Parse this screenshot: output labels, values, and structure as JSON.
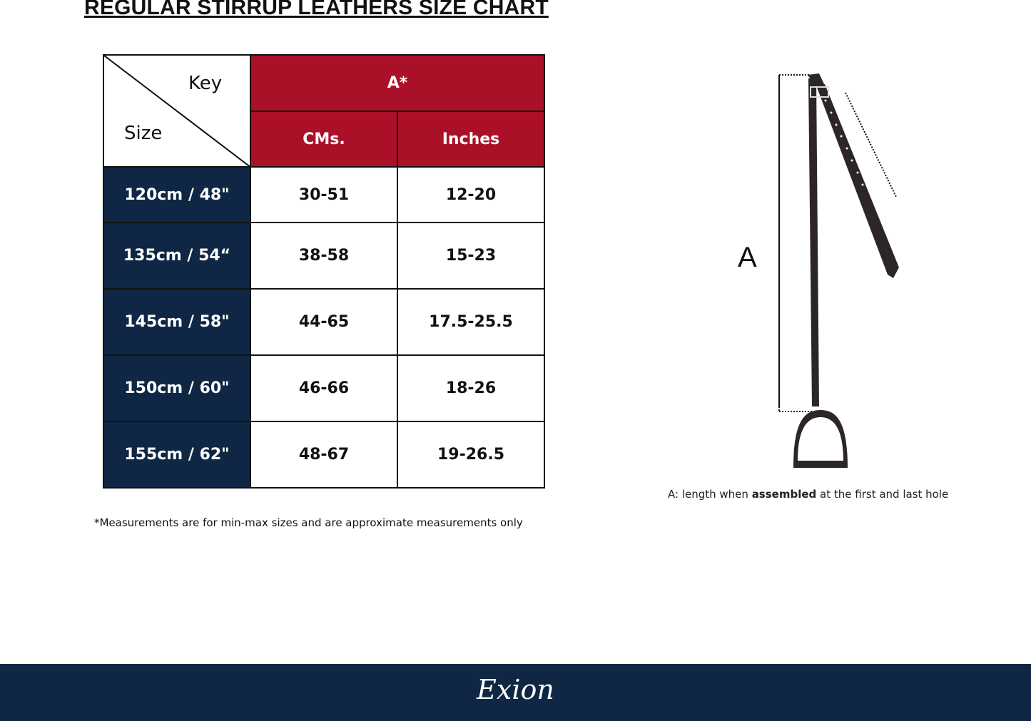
{
  "title": "REGULAR STIRRUP LEATHERS  SIZE CHART",
  "table": {
    "key_label": "Key",
    "size_label": "Size",
    "group_header": "A*",
    "columns": [
      "CMs.",
      "Inches"
    ],
    "rows": [
      {
        "size": "120cm / 48\"",
        "cms": "30-51",
        "inches": "12-20"
      },
      {
        "size": "135cm / 54“",
        "cms": "38-58",
        "inches": "15-23"
      },
      {
        "size": "145cm / 58\"",
        "cms": "44-65",
        "inches": "17.5-25.5"
      },
      {
        "size": "150cm / 60\"",
        "cms": "46-66",
        "inches": "18-26"
      },
      {
        "size": "155cm / 62\"",
        "cms": "48-67",
        "inches": "19-26.5"
      }
    ]
  },
  "note": "*Measurements are for min-max sizes and are approximate measurements only",
  "diagram": {
    "label": "A",
    "caption_pre": "A: length when ",
    "caption_bold": "assembled",
    "caption_post": " at the first and last hole"
  },
  "brand": "Exion",
  "colors": {
    "red": "#ab1029",
    "navy": "#0f2744"
  }
}
